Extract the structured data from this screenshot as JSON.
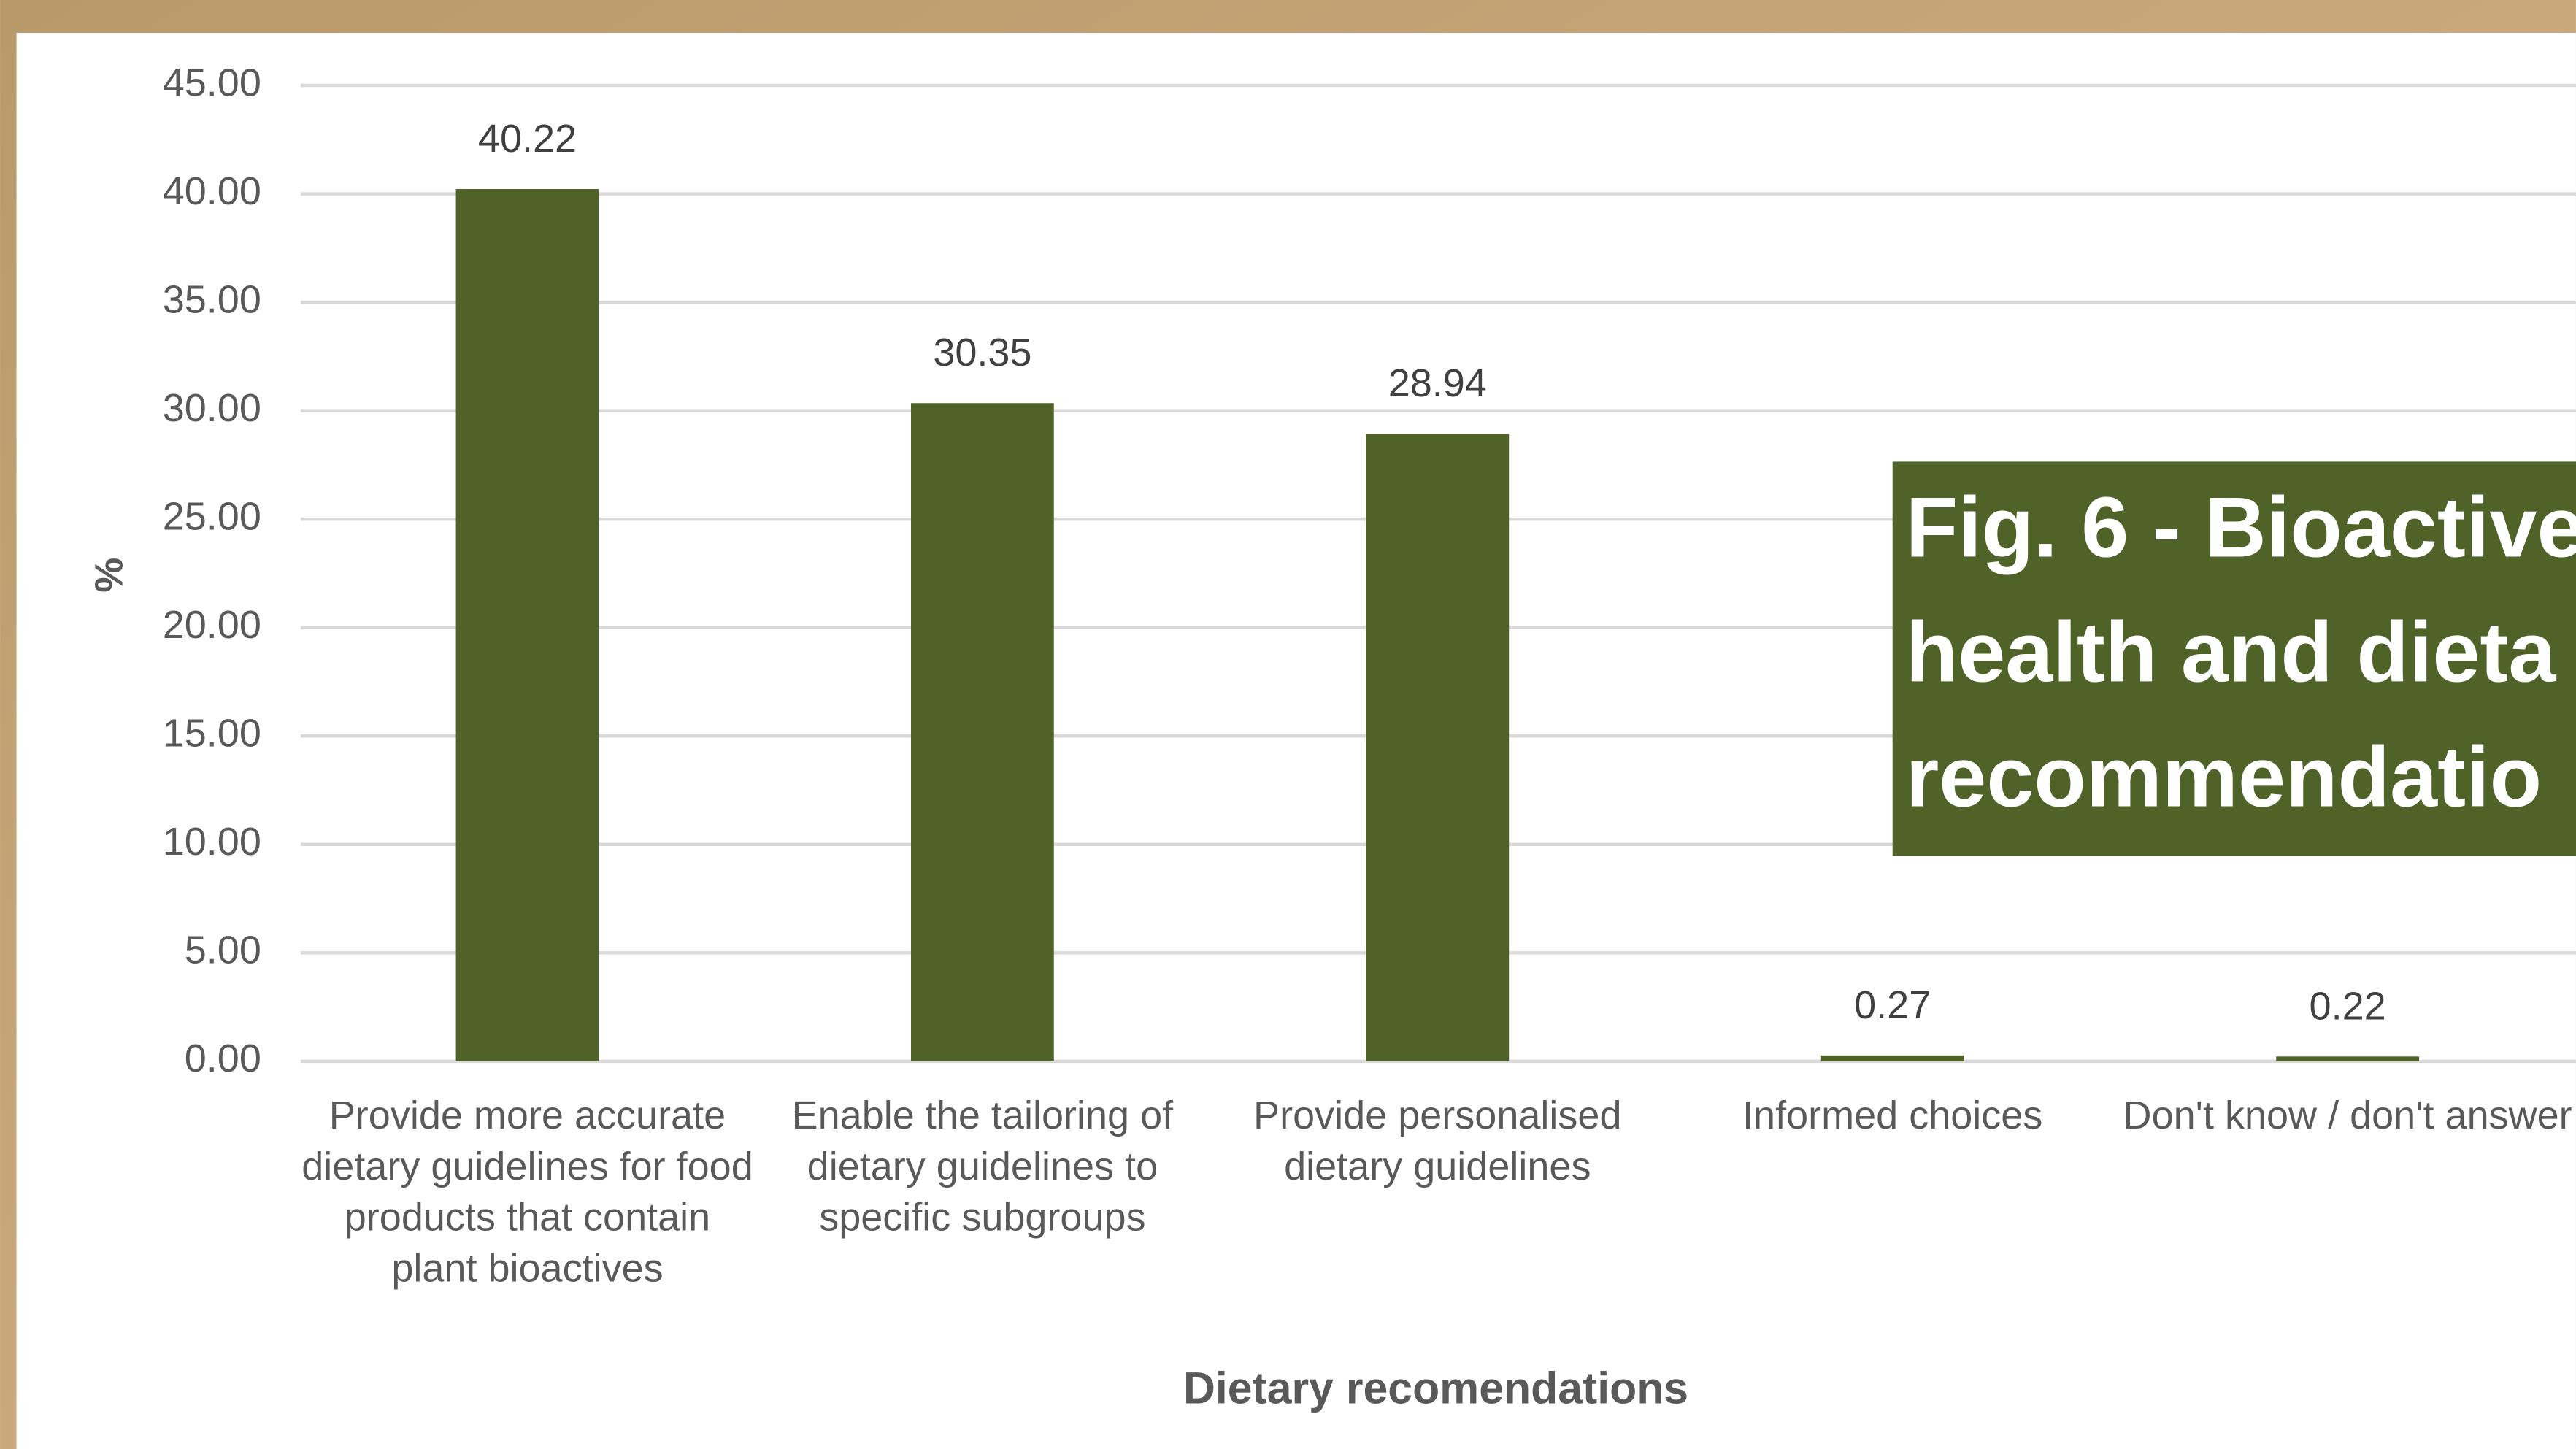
{
  "chart_data": {
    "type": "bar",
    "categories": [
      "Provide more accurate dietary guidelines for food products that contain plant bioactives",
      "Enable the tailoring of dietary guidelines to specific subgroups",
      "Provide personalised dietary guidelines",
      "Informed choices",
      "Don't know / don't answer"
    ],
    "values": [
      40.22,
      30.35,
      28.94,
      0.27,
      0.22
    ],
    "color": "#4f6228",
    "ylim": [
      0,
      45
    ],
    "yticks": [
      {
        "value": 0,
        "label": "0.00"
      },
      {
        "value": 5,
        "label": "5.00"
      },
      {
        "value": 10,
        "label": "10.00"
      },
      {
        "value": 15,
        "label": "15.00"
      },
      {
        "value": 20,
        "label": "20.00"
      },
      {
        "value": 25,
        "label": "25.00"
      },
      {
        "value": 30,
        "label": "30.00"
      },
      {
        "value": 35,
        "label": "35.00"
      },
      {
        "value": 40,
        "label": "40.00"
      },
      {
        "value": 45,
        "label": "45.00"
      }
    ],
    "grid": true,
    "y_label": "%",
    "x_label": "Dietary recomendations",
    "title_lines": [
      "Fig. 6 - Bioactive",
      "health and dieta",
      "recommendatio"
    ]
  }
}
